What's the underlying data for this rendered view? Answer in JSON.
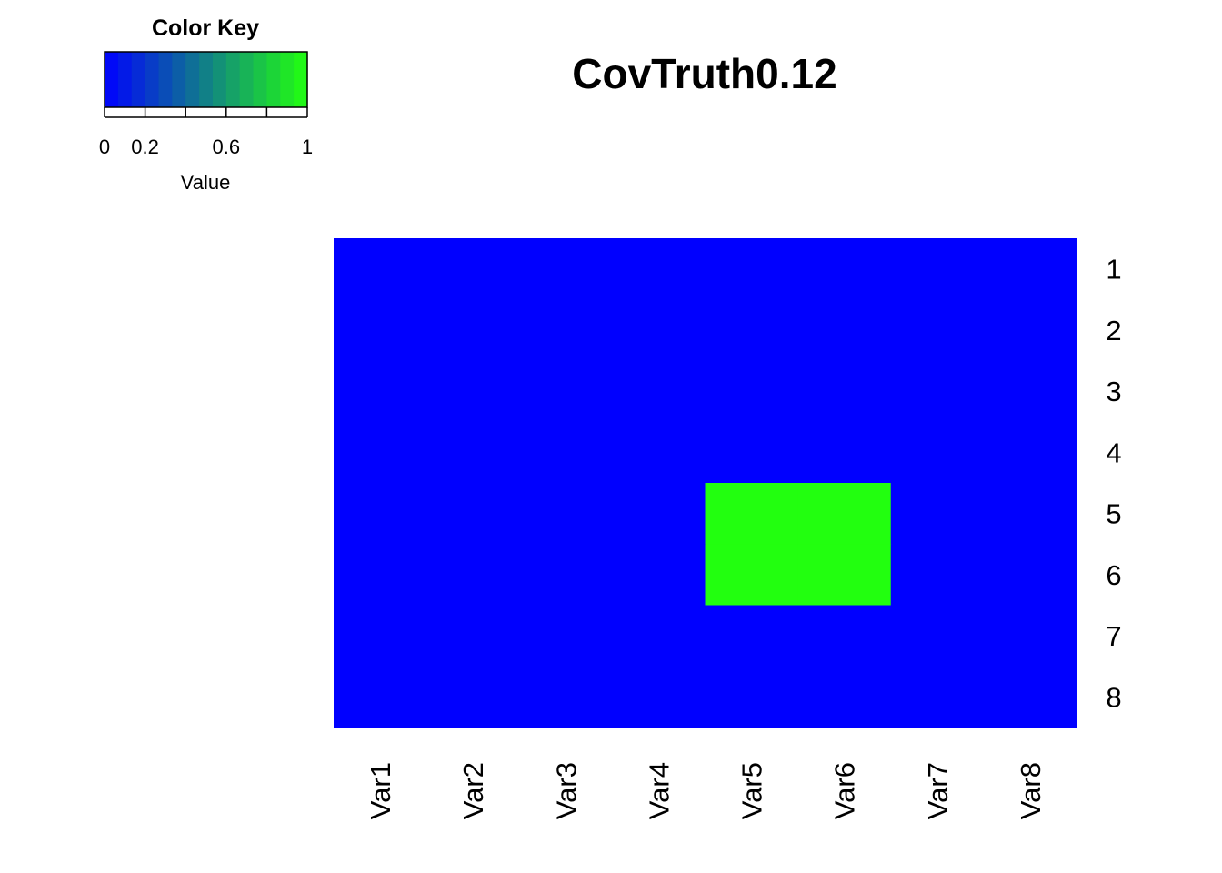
{
  "chart_data": {
    "type": "heatmap",
    "title": "CovTruth0.12",
    "x_labels": [
      "Var1",
      "Var2",
      "Var3",
      "Var4",
      "Var5",
      "Var6",
      "Var7",
      "Var8"
    ],
    "y_labels": [
      "1",
      "2",
      "3",
      "4",
      "5",
      "6",
      "7",
      "8"
    ],
    "values": [
      [
        0,
        0,
        0,
        0,
        0,
        0,
        0,
        0
      ],
      [
        0,
        0,
        0,
        0,
        0,
        0,
        0,
        0
      ],
      [
        0,
        0,
        0,
        0,
        0,
        0,
        0,
        0
      ],
      [
        0,
        0,
        0,
        0,
        0,
        0,
        0,
        0
      ],
      [
        0,
        0,
        0,
        0,
        1,
        1,
        0,
        0
      ],
      [
        0,
        0,
        0,
        0,
        1,
        1,
        0,
        0
      ],
      [
        0,
        0,
        0,
        0,
        0,
        0,
        0,
        0
      ],
      [
        0,
        0,
        0,
        0,
        0,
        0,
        0,
        0
      ]
    ],
    "color_low": "#0000ff",
    "color_high": "#22ff0f",
    "color_key": {
      "title": "Color Key",
      "xlabel": "Value",
      "tick_labels": [
        "0",
        "0.2",
        "0.6",
        "1"
      ],
      "range": [
        0,
        1
      ]
    },
    "legend_position": "top-left"
  }
}
